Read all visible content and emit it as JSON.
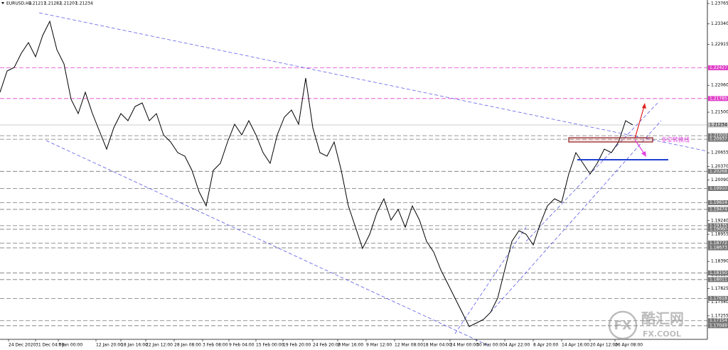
{
  "chart_data": {
    "type": "line",
    "symbol": "EURUSD,H4",
    "ohlc": [
      1.21217,
      1.21282,
      1.21207,
      1.21234
    ],
    "series": [
      {
        "color": "#000000",
        "values": [
          1.21915,
          1.22359,
          1.22433,
          1.22729,
          1.22951,
          1.22655,
          1.23099,
          1.23395,
          1.22803,
          1.22507,
          1.21767,
          1.21471,
          1.21915,
          1.21471,
          1.21101,
          1.20731,
          1.21175,
          1.21471,
          1.21323,
          1.21619,
          1.21693,
          1.21323,
          1.21471,
          1.21027,
          1.20879,
          1.20657,
          1.20583,
          1.20287,
          1.19843,
          1.19547,
          1.20287,
          1.20435,
          1.20879,
          1.21249,
          1.21027,
          1.21323,
          1.21027,
          1.20657,
          1.20435,
          1.21027,
          1.21397,
          1.21545,
          1.21249,
          1.22211,
          1.21175,
          1.20657,
          1.20583,
          1.20879,
          1.20287,
          1.19547,
          1.19103,
          1.18659,
          1.18955,
          1.19399,
          1.19695,
          1.19251,
          1.19473,
          1.19103,
          1.19547,
          1.19251,
          1.18807,
          1.18585,
          1.18215,
          1.17919,
          1.17623,
          1.17327,
          1.17031,
          1.17105,
          1.17179,
          1.17327,
          1.17623,
          1.18215,
          1.18807,
          1.19029,
          1.18955,
          1.18733,
          1.19177,
          1.19547,
          1.19695,
          1.19621,
          1.20213,
          1.20657,
          1.20435,
          1.20213,
          1.20435,
          1.20731,
          1.20657,
          1.20879,
          1.21323,
          1.21234
        ]
      }
    ],
    "xlim": [
      0,
      99.5
    ],
    "xticks": [
      {
        "value": 1.2,
        "label": "24 Dec 2020"
      },
      {
        "value": 5,
        "label": "31 Dec 04:00"
      },
      {
        "value": 8.2,
        "label": "7 Jan 00:00"
      },
      {
        "value": 13.5,
        "label": "12 Jan 20:00"
      },
      {
        "value": 17,
        "label": "18 Jan 16:00"
      },
      {
        "value": 20.5,
        "label": "22 Jan 12:00"
      },
      {
        "value": 24.5,
        "label": "28 Jan 08:00"
      },
      {
        "value": 28.5,
        "label": "3 Feb 08:00"
      },
      {
        "value": 32.2,
        "label": "9 Feb 04:00"
      },
      {
        "value": 36,
        "label": "15 Feb 00:00"
      },
      {
        "value": 39.8,
        "label": "19 Feb 20:00"
      },
      {
        "value": 44,
        "label": "24 Feb 20:00"
      },
      {
        "value": 47.5,
        "label": "2 Mar 16:00"
      },
      {
        "value": 51.5,
        "label": "9 Mar 12:00"
      },
      {
        "value": 55.5,
        "label": "12 Mar 08:00"
      },
      {
        "value": 59.5,
        "label": "18 Mar 04:00"
      },
      {
        "value": 63.3,
        "label": "24 Mar 00:00"
      },
      {
        "value": 67,
        "label": "30 Mar 00:00"
      },
      {
        "value": 71,
        "label": "4 Apr 22:00"
      },
      {
        "value": 75,
        "label": "8 Apr 20:00"
      },
      {
        "value": 79,
        "label": "14 Apr 16:00"
      },
      {
        "value": 83,
        "label": "20 Apr 12:00"
      },
      {
        "value": 86.5,
        "label": "26 Apr 08:00"
      }
    ],
    "ylim": [
      1.16765,
      1.23839
    ],
    "yticks": [
      1.23765,
      {
        "value": 1.2334,
        "label": "1.23340"
      },
      1.22915,
      {
        "value": 1.2206,
        "label": "1.22060"
      },
      {
        "value": 1.215,
        "label": "1.21500"
      },
      1.20655,
      {
        "value": 1.2037,
        "label": "1.20370"
      },
      {
        "value": 1.2009,
        "label": "1.20090"
      },
      {
        "value": 1.1924,
        "label": "1.19240"
      },
      1.18955,
      {
        "value": 1.1839,
        "label": "1.18390"
      },
      {
        "value": 1.1811,
        "label": "1.18110"
      },
      1.17825,
      {
        "value": 1.1754,
        "label": "1.17540"
      },
      1.17255
    ],
    "levels": [
      {
        "value": 1.22427,
        "label": "1.22427",
        "color": "#e040c8"
      },
      {
        "value": 1.21785,
        "label": "1.21785",
        "color": "#e040c8"
      },
      {
        "value": 1.2101,
        "label": "1.21010",
        "color": "#777777"
      },
      {
        "value": 1.20937,
        "label": "1.20937",
        "color": "#777777"
      },
      {
        "value": 1.20268,
        "label": "1.20268",
        "color": "#777777"
      },
      {
        "value": 1.1991,
        "label": "1.19910",
        "color": "#777777"
      },
      {
        "value": 1.19614,
        "label": "1.19614",
        "color": "#777777"
      },
      {
        "value": 1.19474,
        "label": "1.19474",
        "color": "#777777"
      },
      {
        "value": 1.19135,
        "label": "1.19135",
        "color": "#777777"
      },
      {
        "value": 1.1906,
        "label": "1.19060",
        "color": "#777777"
      },
      {
        "value": 1.18772,
        "label": "1.18772",
        "color": "#777777"
      },
      {
        "value": 1.18673,
        "label": "1.18673",
        "color": "#777777"
      },
      {
        "value": 1.1815,
        "label": "1.18150",
        "color": "#777777"
      },
      {
        "value": 1.18011,
        "label": "1.18011",
        "color": "#777777"
      },
      {
        "value": 1.17618,
        "label": "1.17618",
        "color": "#777777"
      },
      {
        "value": 1.17154,
        "label": "1.17154",
        "color": "#777777"
      },
      {
        "value": 1.17049,
        "label": "1.17049",
        "color": "#777777"
      }
    ],
    "current_price": 1.21234,
    "annotation": "多空转换线",
    "watermark": {
      "badge": "FX",
      "name": "酷汇网",
      "site": "FX.COOL"
    }
  }
}
